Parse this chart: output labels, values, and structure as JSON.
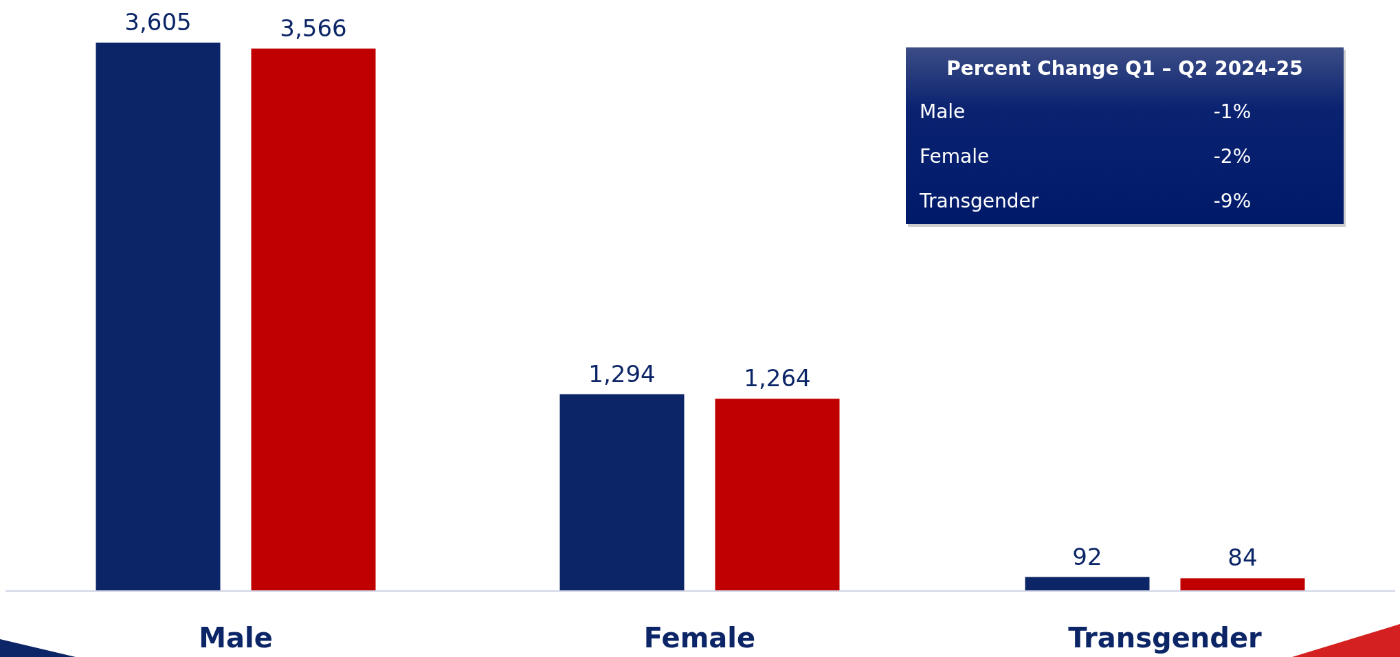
{
  "chart_data": {
    "type": "bar",
    "categories": [
      "Male",
      "Female",
      "Transgender"
    ],
    "series": [
      {
        "color": "#0b2566",
        "values": [
          3605,
          1294,
          92
        ],
        "value_labels": [
          "3,605",
          "1,294",
          "92"
        ]
      },
      {
        "color": "#c00000",
        "values": [
          3566,
          1264,
          84
        ],
        "value_labels": [
          "3,566",
          "1,264",
          "84"
        ]
      }
    ],
    "annotations": [
      "Percent Change Q1 – Q2 2024-25",
      "Male",
      "-1%",
      "Female",
      "-2%",
      "Transgender",
      "-9%"
    ]
  }
}
